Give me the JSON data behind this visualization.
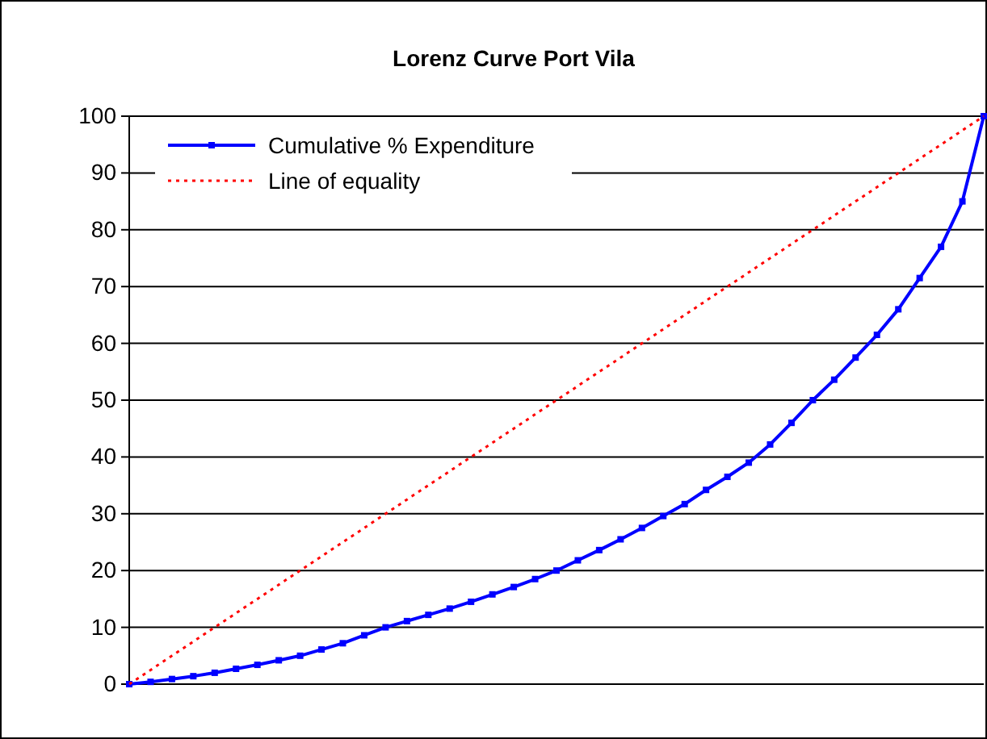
{
  "chart_data": {
    "type": "line",
    "title": "Lorenz Curve Port Vila",
    "categories": [
      null,
      null,
      null,
      null,
      null,
      null,
      null,
      null,
      null,
      null,
      null,
      null,
      null,
      null,
      null,
      null,
      null,
      null,
      null,
      null,
      null,
      null,
      null,
      null,
      null,
      null,
      null,
      null,
      null,
      null,
      null,
      null,
      null,
      null,
      null,
      null,
      null,
      null,
      null,
      null,
      null
    ],
    "series": [
      {
        "name": "Cumulative % Expenditure",
        "color": "#0000ff",
        "marker": "square",
        "line_style": "solid",
        "values": [
          0,
          0.4,
          0.9,
          1.4,
          2.0,
          2.7,
          3.4,
          4.2,
          5.0,
          6.1,
          7.2,
          8.6,
          10,
          11.1,
          12.2,
          13.3,
          14.5,
          15.8,
          17.1,
          18.5,
          20,
          21.8,
          23.6,
          25.5,
          27.5,
          29.6,
          31.7,
          34.2,
          36.5,
          39,
          42.2,
          46,
          50,
          53.6,
          57.5,
          61.5,
          66,
          71.5,
          77,
          85,
          100
        ]
      },
      {
        "name": "Line of equality",
        "color": "#ff0000",
        "marker": "none",
        "line_style": "dotted",
        "values": [
          0,
          2.5,
          5,
          7.5,
          10,
          12.5,
          15,
          17.5,
          20,
          22.5,
          25,
          27.5,
          30,
          32.5,
          35,
          37.5,
          40,
          42.5,
          45,
          47.5,
          50,
          52.5,
          55,
          57.5,
          60,
          62.5,
          65,
          67.5,
          70,
          72.5,
          75,
          77.5,
          80,
          82.5,
          85,
          87.5,
          90,
          92.5,
          95,
          97.5,
          100
        ]
      }
    ],
    "ylim": [
      0,
      100
    ],
    "yticks": [
      0,
      10,
      20,
      30,
      40,
      50,
      60,
      70,
      80,
      90,
      100
    ],
    "grid": "y",
    "legend": "top left",
    "tick_labels": "y"
  }
}
